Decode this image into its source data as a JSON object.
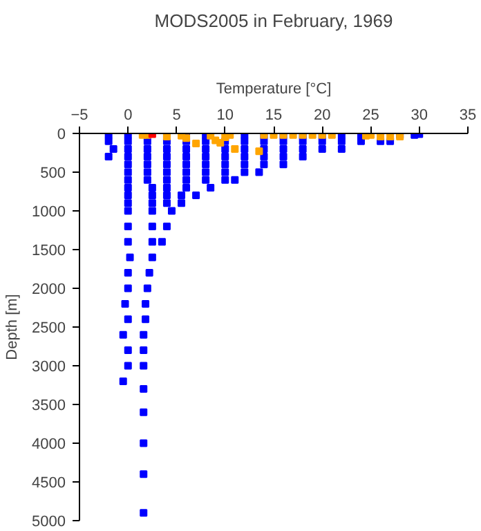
{
  "chart_data": {
    "type": "scatter",
    "title": "MODS2005 in February, 1969",
    "xlabel": "Temperature [°C]",
    "ylabel": "Depth [m]",
    "xlim": [
      -5,
      35
    ],
    "xticks": [
      -5,
      0,
      5,
      10,
      15,
      20,
      25,
      30,
      35
    ],
    "ylim": [
      5000,
      0
    ],
    "yticks": [
      0,
      500,
      1000,
      1500,
      2000,
      2500,
      3000,
      3500,
      4000,
      4500,
      5000
    ],
    "grid": false,
    "marker": "square",
    "series": [
      {
        "color": "#0000ff",
        "x": [
          -2,
          0,
          4,
          6,
          8,
          12,
          14,
          16,
          18,
          20,
          22,
          24,
          28,
          29.5,
          -2,
          0,
          2,
          4,
          6,
          8,
          10,
          12,
          14,
          16,
          18,
          20,
          22,
          24,
          26,
          27,
          -1.5,
          0,
          2,
          4,
          6,
          8,
          10,
          12,
          14,
          16,
          18,
          20,
          22,
          -2,
          0,
          2,
          4,
          6,
          8,
          10,
          12,
          14,
          16,
          18,
          0,
          2,
          4,
          6,
          8,
          10,
          12,
          14,
          16,
          0,
          2,
          4,
          6,
          8,
          10,
          12,
          13.5,
          0,
          2,
          4,
          6,
          8,
          10,
          11,
          0,
          2.5,
          4,
          6,
          8.5,
          0,
          2.5,
          4,
          5.5,
          7,
          0,
          2.5,
          4,
          5.5,
          0,
          2.5,
          4.5,
          0,
          2.5,
          4,
          0,
          2.5,
          3.5,
          0.2,
          2.5,
          0,
          0,
          -0.3,
          0,
          -0.5,
          0,
          0,
          -0.5,
          2.2,
          2,
          1.8,
          1.8,
          1.6,
          1.6,
          1.6,
          1.6,
          1.6,
          1.6,
          1.6,
          1.6,
          30
        ],
        "values": [
          20,
          20,
          20,
          20,
          20,
          20,
          20,
          20,
          20,
          20,
          20,
          20,
          20,
          20,
          100,
          100,
          100,
          100,
          100,
          100,
          100,
          100,
          100,
          100,
          100,
          100,
          100,
          100,
          100,
          100,
          200,
          200,
          200,
          200,
          200,
          200,
          200,
          200,
          200,
          200,
          200,
          200,
          200,
          300,
          300,
          300,
          300,
          300,
          300,
          300,
          300,
          300,
          300,
          300,
          400,
          400,
          400,
          400,
          400,
          400,
          400,
          400,
          400,
          500,
          500,
          500,
          500,
          500,
          500,
          500,
          500,
          600,
          600,
          600,
          600,
          600,
          600,
          600,
          700,
          700,
          700,
          700,
          700,
          800,
          800,
          800,
          800,
          800,
          900,
          900,
          900,
          900,
          1000,
          1000,
          1000,
          1200,
          1200,
          1200,
          1400,
          1400,
          1400,
          1600,
          1600,
          1800,
          2000,
          2200,
          2400,
          2600,
          2800,
          3000,
          3200,
          1800,
          2000,
          2200,
          2400,
          2600,
          2800,
          3000,
          3300,
          3600,
          4000,
          4400,
          4900,
          10
        ]
      },
      {
        "color": "#ffa500",
        "x": [
          1.5,
          2,
          4,
          5.5,
          6,
          7,
          8.5,
          9,
          9.5,
          10,
          10.5,
          11,
          13.5,
          14,
          15,
          16,
          17,
          18,
          19,
          20,
          21,
          24.5,
          25,
          26,
          27,
          28
        ],
        "values": [
          20,
          20,
          40,
          30,
          60,
          130,
          30,
          90,
          120,
          50,
          20,
          200,
          230,
          20,
          20,
          20,
          20,
          20,
          20,
          20,
          20,
          30,
          20,
          40,
          40,
          40
        ]
      },
      {
        "color": "#ff0000",
        "x": [
          2.5
        ],
        "values": [
          10
        ]
      }
    ]
  }
}
